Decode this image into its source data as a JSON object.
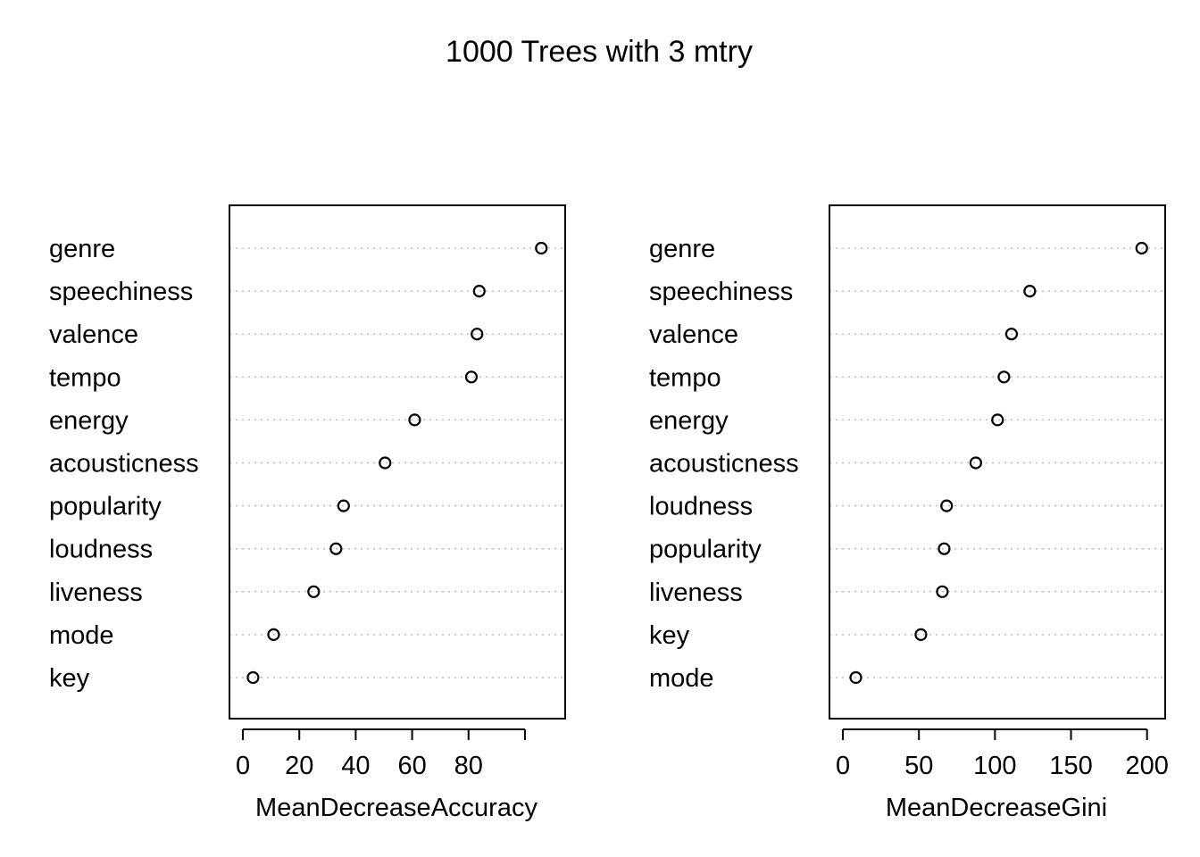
{
  "title": "1000 Trees with 3 mtry",
  "chart_data": [
    {
      "type": "scatter",
      "subtype": "dotchart",
      "xlabel": "MeanDecreaseAccuracy",
      "xlim": [
        0,
        109.5
      ],
      "xticks": [
        0,
        20,
        40,
        60,
        80,
        100
      ],
      "xtick_labels": [
        "0",
        "20",
        "40",
        "60",
        "80",
        ""
      ],
      "grid": "dotted horizontal",
      "categories": [
        "genre",
        "speechiness",
        "valence",
        "tempo",
        "energy",
        "acousticness",
        "popularity",
        "loudness",
        "liveness",
        "mode",
        "key"
      ],
      "values": [
        105.8,
        83.8,
        83.0,
        81.0,
        60.9,
        50.4,
        35.7,
        33.0,
        25.1,
        10.9,
        3.6
      ]
    },
    {
      "type": "scatter",
      "subtype": "dotchart",
      "xlabel": "MeanDecreaseGini",
      "xlim": [
        0,
        203.1
      ],
      "xticks": [
        0,
        50,
        100,
        150,
        200
      ],
      "xtick_labels": [
        "0",
        "50",
        "100",
        "150",
        "200"
      ],
      "grid": "dotted horizontal",
      "categories": [
        "genre",
        "speechiness",
        "valence",
        "tempo",
        "energy",
        "acousticness",
        "loudness",
        "popularity",
        "liveness",
        "key",
        "mode"
      ],
      "values": [
        196.5,
        122.9,
        110.9,
        105.9,
        101.7,
        87.4,
        68.2,
        66.6,
        65.4,
        51.3,
        8.5
      ]
    }
  ]
}
